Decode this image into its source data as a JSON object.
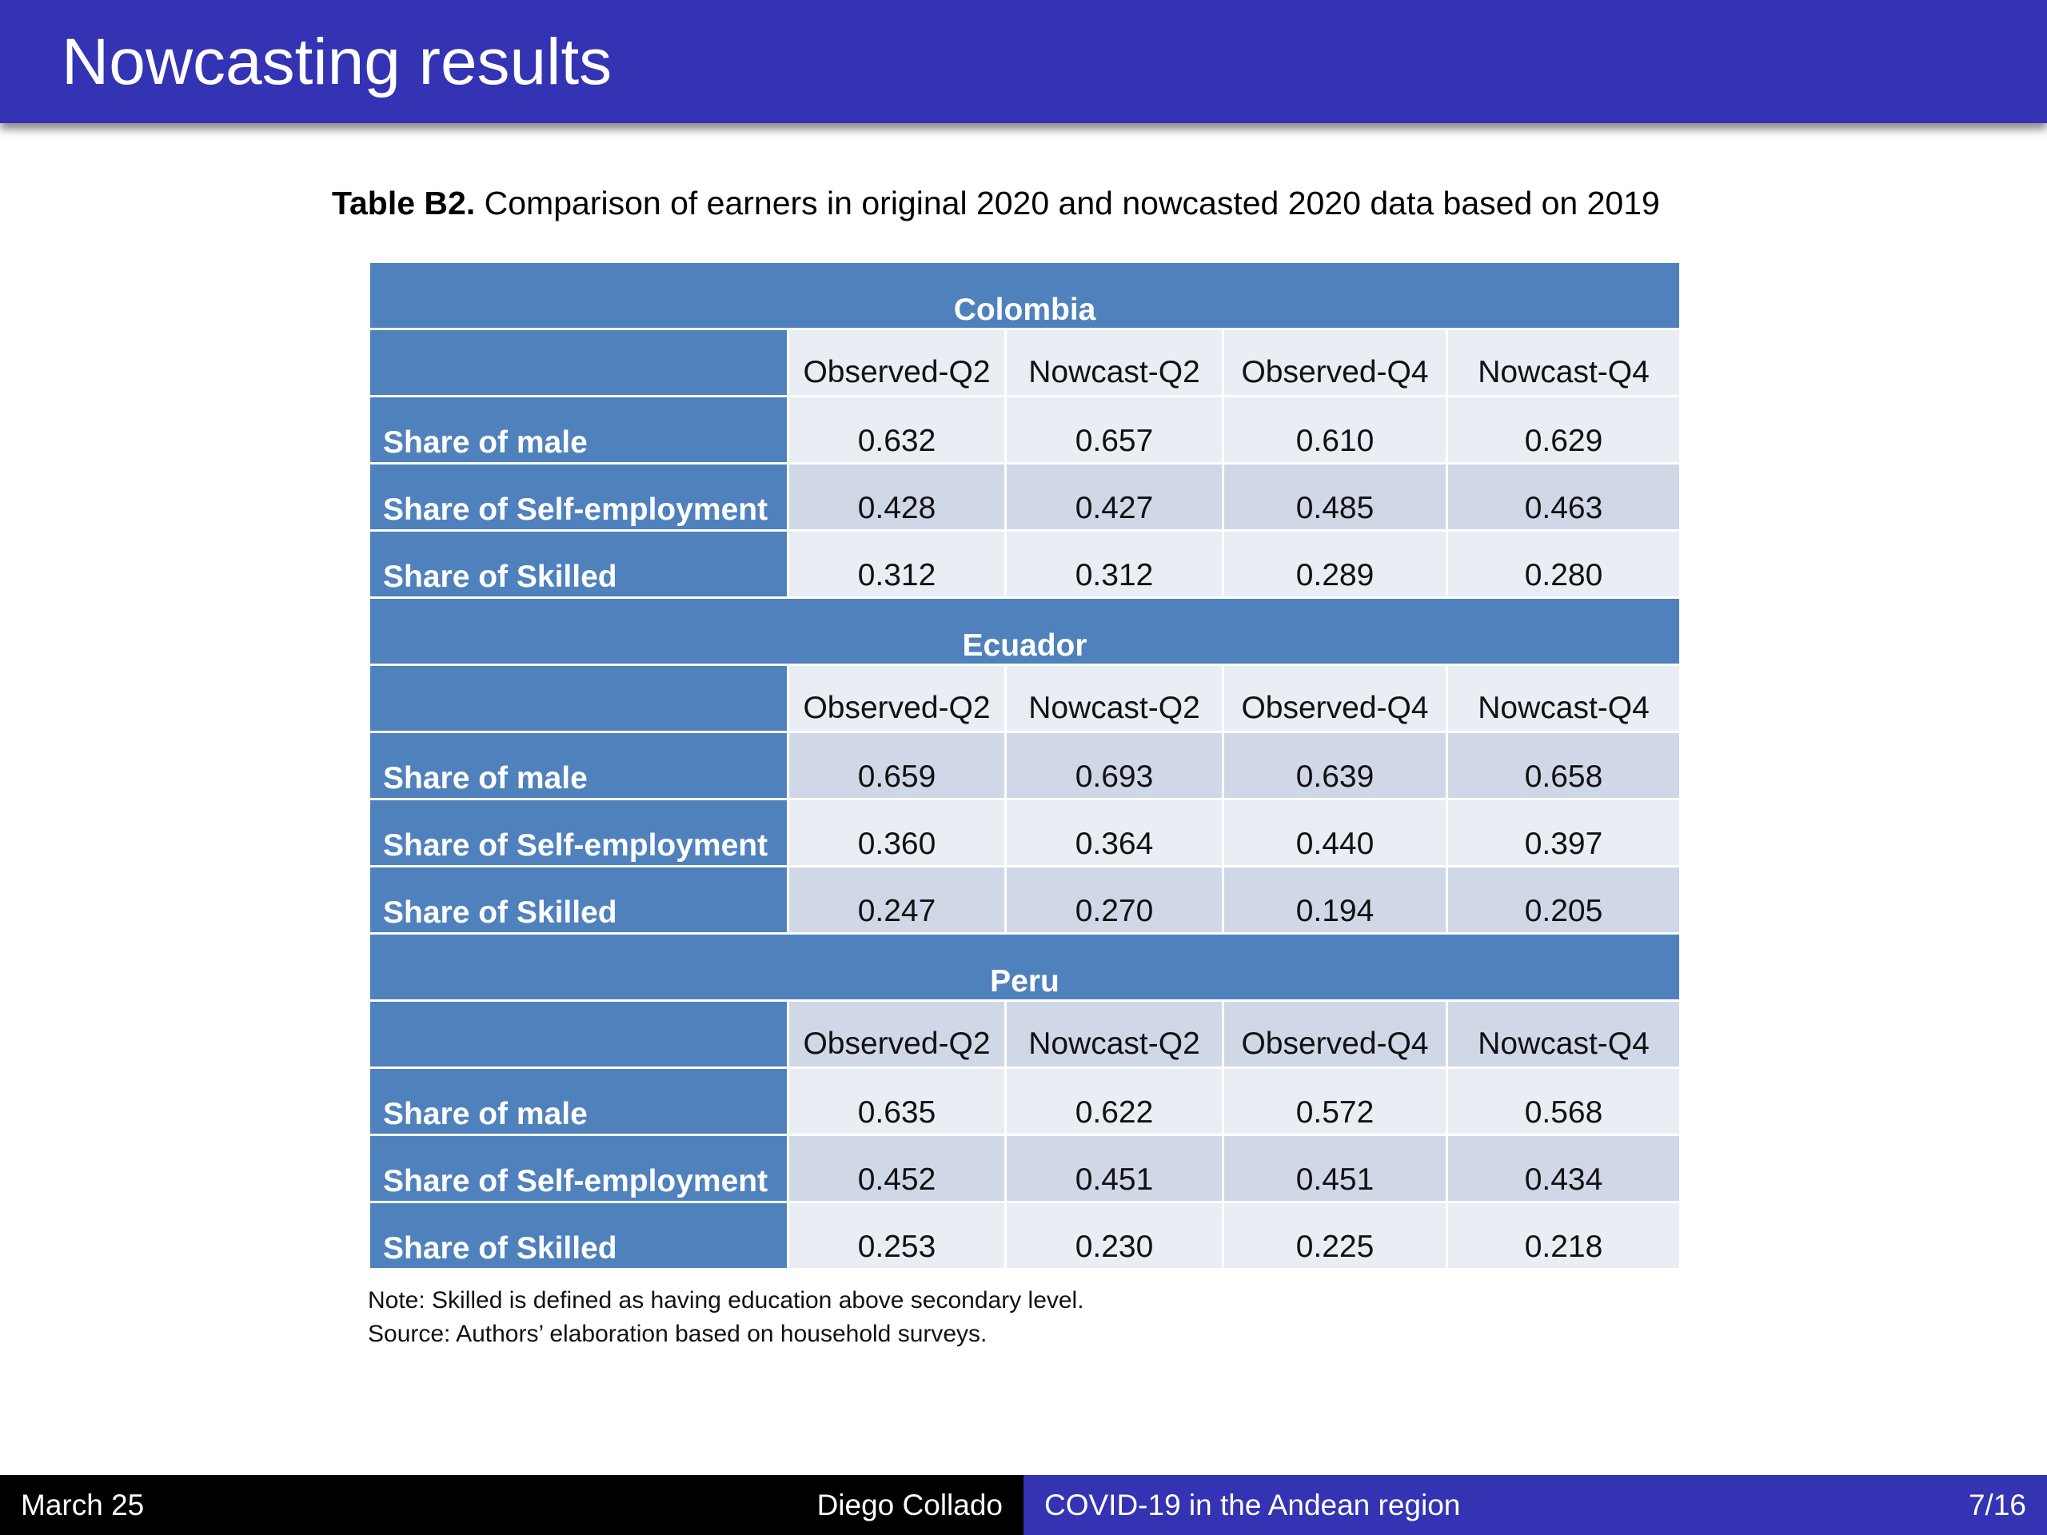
{
  "header": {
    "title": "Nowcasting results"
  },
  "caption": {
    "label": "Table B2.",
    "text": " Comparison of earners in original 2020 and nowcasted 2020 data based on 2019"
  },
  "table": {
    "columns": [
      "Observed-Q2",
      "Nowcast-Q2",
      "Observed-Q4",
      "Nowcast-Q4"
    ],
    "groups": [
      {
        "name": "Colombia",
        "rows": [
          {
            "label": "Share of male",
            "values": [
              "0.632",
              "0.657",
              "0.610",
              "0.629"
            ]
          },
          {
            "label": "Share of Self-employment",
            "values": [
              "0.428",
              "0.427",
              "0.485",
              "0.463"
            ]
          },
          {
            "label": "Share of Skilled",
            "values": [
              "0.312",
              "0.312",
              "0.289",
              "0.280"
            ]
          }
        ]
      },
      {
        "name": "Ecuador",
        "rows": [
          {
            "label": "Share of male",
            "values": [
              "0.659",
              "0.693",
              "0.639",
              "0.658"
            ]
          },
          {
            "label": "Share of Self-employment",
            "values": [
              "0.360",
              "0.364",
              "0.440",
              "0.397"
            ]
          },
          {
            "label": "Share of Skilled",
            "values": [
              "0.247",
              "0.270",
              "0.194",
              "0.205"
            ]
          }
        ]
      },
      {
        "name": "Peru",
        "rows": [
          {
            "label": "Share of male",
            "values": [
              "0.635",
              "0.622",
              "0.572",
              "0.568"
            ]
          },
          {
            "label": "Share of Self-employment",
            "values": [
              "0.452",
              "0.451",
              "0.451",
              "0.434"
            ]
          },
          {
            "label": "Share of Skilled",
            "values": [
              "0.253",
              "0.230",
              "0.225",
              "0.218"
            ]
          }
        ]
      }
    ]
  },
  "notes": {
    "note": "Note: Skilled is defined as having education above secondary level.",
    "source": "Source: Authors’ elaboration based on household surveys."
  },
  "footer": {
    "date": "March 25",
    "author": "Diego Collado",
    "talk_title": "COVID-19 in the Andean region",
    "page": "7/16"
  },
  "colors": {
    "header_bg": "#3333b3",
    "table_header_bg": "#4f81bd",
    "band_light": "#e9edf4",
    "band_dark": "#d0d8e8"
  }
}
